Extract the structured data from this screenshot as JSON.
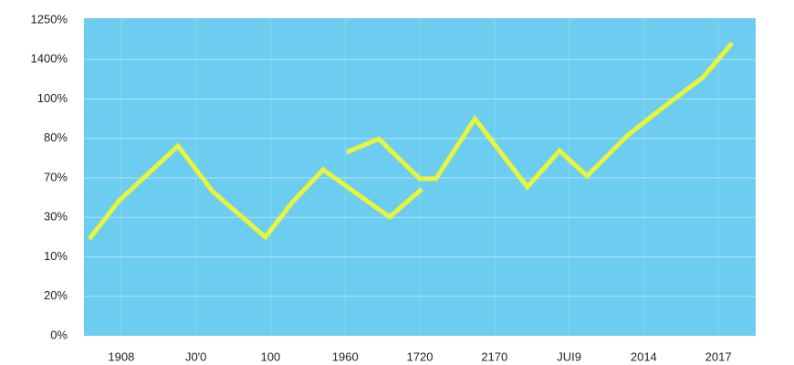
{
  "chart_data": {
    "type": "line",
    "categories": [
      "1908",
      "J0'0",
      "100",
      "1960",
      "1720",
      "2170",
      "JUI9",
      "2014",
      "2017"
    ],
    "y_labels": [
      "0%",
      "20%",
      "10%",
      "30%",
      "70%",
      "80%",
      "100%",
      "1400%",
      "1250%"
    ],
    "xlim": [
      0,
      100
    ],
    "ylim": [
      0,
      8
    ],
    "grid": true,
    "series": [
      {
        "color": "#e9f53b",
        "x": [
          0.8,
          5.2,
          14.0,
          19.2,
          27.0,
          31.0,
          35.6,
          45.5,
          50.3
        ],
        "values": [
          2.45,
          3.42,
          4.81,
          3.65,
          2.5,
          3.38,
          4.21,
          3.01,
          3.72
        ]
      },
      {
        "color": "#e9f53b",
        "x": [
          39.1,
          43.9,
          50.0,
          52.4,
          58.2,
          66.0,
          70.8,
          74.9,
          81.0,
          86.7,
          92.1,
          96.5
        ],
        "values": [
          4.65,
          4.99,
          3.98,
          3.98,
          5.5,
          3.77,
          4.69,
          4.05,
          5.09,
          5.85,
          6.54,
          7.42
        ]
      }
    ]
  }
}
